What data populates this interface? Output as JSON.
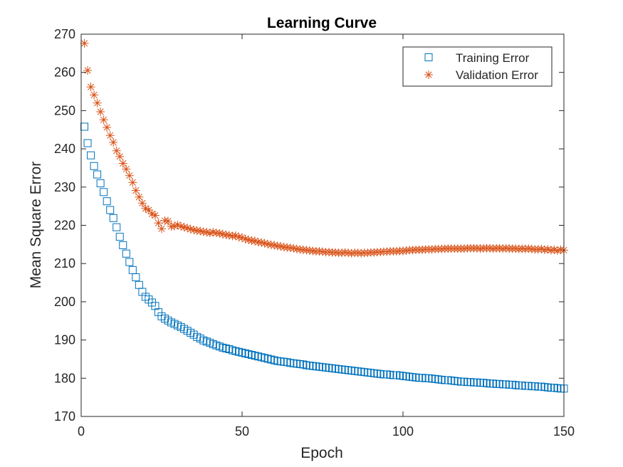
{
  "chart_data": {
    "type": "scatter",
    "title": "Learning Curve",
    "xlabel": "Epoch",
    "ylabel": "Mean Square Error",
    "xlim": [
      0,
      150
    ],
    "ylim": [
      170,
      270
    ],
    "xticks": [
      0,
      50,
      100,
      150
    ],
    "yticks": [
      170,
      180,
      190,
      200,
      210,
      220,
      230,
      240,
      250,
      260,
      270
    ],
    "grid": false,
    "legend_position": "top-right",
    "series": [
      {
        "name": "Training Error",
        "marker": "square",
        "color": "#0072BD",
        "x": [
          1,
          2,
          3,
          4,
          5,
          6,
          7,
          8,
          9,
          10,
          11,
          12,
          13,
          14,
          15,
          16,
          17,
          18,
          19,
          20,
          21,
          22,
          23,
          24,
          25,
          26,
          27,
          28,
          29,
          30,
          31,
          32,
          33,
          34,
          35,
          36,
          37,
          38,
          39,
          40,
          41,
          42,
          43,
          44,
          45,
          46,
          47,
          48,
          49,
          50,
          51,
          52,
          53,
          54,
          55,
          56,
          57,
          58,
          59,
          60,
          61,
          62,
          63,
          64,
          65,
          66,
          67,
          68,
          69,
          70,
          71,
          72,
          73,
          74,
          75,
          76,
          77,
          78,
          79,
          80,
          81,
          82,
          83,
          84,
          85,
          86,
          87,
          88,
          89,
          90,
          91,
          92,
          93,
          94,
          95,
          96,
          97,
          98,
          99,
          100,
          101,
          102,
          103,
          104,
          105,
          106,
          107,
          108,
          109,
          110,
          111,
          112,
          113,
          114,
          115,
          116,
          117,
          118,
          119,
          120,
          121,
          122,
          123,
          124,
          125,
          126,
          127,
          128,
          129,
          130,
          131,
          132,
          133,
          134,
          135,
          136,
          137,
          138,
          139,
          140,
          141,
          142,
          143,
          144,
          145,
          146,
          147,
          148,
          149,
          150
        ],
        "y": [
          245.8,
          241.5,
          238.3,
          235.5,
          233.3,
          231.0,
          228.7,
          226.3,
          224.0,
          221.9,
          219.5,
          217.0,
          214.8,
          212.6,
          210.4,
          208.3,
          206.4,
          204.4,
          202.6,
          201.3,
          200.6,
          199.8,
          198.9,
          197.3,
          196.2,
          195.6,
          195.1,
          194.6,
          194.2,
          193.8,
          193.4,
          192.9,
          192.4,
          191.9,
          191.4,
          190.8,
          190.4,
          189.9,
          189.6,
          189.3,
          188.9,
          188.6,
          188.3,
          188.0,
          187.8,
          187.6,
          187.3,
          187.1,
          186.9,
          186.7,
          186.5,
          186.3,
          186.1,
          185.9,
          185.7,
          185.5,
          185.3,
          185.1,
          184.9,
          184.7,
          184.5,
          184.4,
          184.3,
          184.2,
          184.0,
          183.9,
          183.8,
          183.7,
          183.6,
          183.4,
          183.3,
          183.2,
          183.1,
          183.0,
          182.9,
          182.8,
          182.7,
          182.6,
          182.5,
          182.4,
          182.3,
          182.2,
          182.1,
          182.0,
          181.9,
          181.8,
          181.7,
          181.6,
          181.5,
          181.4,
          181.3,
          181.2,
          181.1,
          181.0,
          181.0,
          180.9,
          180.8,
          180.8,
          180.7,
          180.6,
          180.5,
          180.4,
          180.3,
          180.2,
          180.1,
          180.1,
          180.0,
          180.0,
          179.9,
          179.8,
          179.7,
          179.6,
          179.5,
          179.5,
          179.4,
          179.3,
          179.2,
          179.1,
          179.1,
          179.0,
          179.0,
          178.9,
          178.9,
          178.8,
          178.8,
          178.7,
          178.6,
          178.6,
          178.5,
          178.5,
          178.4,
          178.4,
          178.3,
          178.3,
          178.2,
          178.1,
          178.1,
          178.0,
          178.0,
          177.9,
          177.9,
          177.8,
          177.8,
          177.7,
          177.6,
          177.5,
          177.5,
          177.4,
          177.3,
          177.3
        ]
      },
      {
        "name": "Validation Error",
        "marker": "asterisk",
        "color": "#D95319",
        "x": [
          1,
          2,
          3,
          4,
          5,
          6,
          7,
          8,
          9,
          10,
          11,
          12,
          13,
          14,
          15,
          16,
          17,
          18,
          19,
          20,
          21,
          22,
          23,
          24,
          25,
          26,
          27,
          28,
          29,
          30,
          31,
          32,
          33,
          34,
          35,
          36,
          37,
          38,
          39,
          40,
          41,
          42,
          43,
          44,
          45,
          46,
          47,
          48,
          49,
          50,
          51,
          52,
          53,
          54,
          55,
          56,
          57,
          58,
          59,
          60,
          61,
          62,
          63,
          64,
          65,
          66,
          67,
          68,
          69,
          70,
          71,
          72,
          73,
          74,
          75,
          76,
          77,
          78,
          79,
          80,
          81,
          82,
          83,
          84,
          85,
          86,
          87,
          88,
          89,
          90,
          91,
          92,
          93,
          94,
          95,
          96,
          97,
          98,
          99,
          100,
          101,
          102,
          103,
          104,
          105,
          106,
          107,
          108,
          109,
          110,
          111,
          112,
          113,
          114,
          115,
          116,
          117,
          118,
          119,
          120,
          121,
          122,
          123,
          124,
          125,
          126,
          127,
          128,
          129,
          130,
          131,
          132,
          133,
          134,
          135,
          136,
          137,
          138,
          139,
          140,
          141,
          142,
          143,
          144,
          145,
          146,
          147,
          148,
          149,
          150
        ],
        "y": [
          267.6,
          260.5,
          256.2,
          254.1,
          252.0,
          249.7,
          247.6,
          245.6,
          243.5,
          241.7,
          239.5,
          238.0,
          236.2,
          234.7,
          233.0,
          231.2,
          229.1,
          227.4,
          225.8,
          224.4,
          224.0,
          223.0,
          222.6,
          220.6,
          219.1,
          221.2,
          221.1,
          219.7,
          219.8,
          220.1,
          219.7,
          219.5,
          219.3,
          219.0,
          218.8,
          218.6,
          218.5,
          218.3,
          218.2,
          218.0,
          218.2,
          218.0,
          217.9,
          217.7,
          217.5,
          217.4,
          217.2,
          217.3,
          216.9,
          216.8,
          216.4,
          216.2,
          216.0,
          215.9,
          215.6,
          215.5,
          215.3,
          215.1,
          214.9,
          214.8,
          214.6,
          214.5,
          214.3,
          214.2,
          214.1,
          214.0,
          213.8,
          213.7,
          213.6,
          213.5,
          213.4,
          213.3,
          213.2,
          213.2,
          213.1,
          213.0,
          213.0,
          212.9,
          212.9,
          212.8,
          212.8,
          212.9,
          212.8,
          212.7,
          212.8,
          212.8,
          212.7,
          212.8,
          212.8,
          212.9,
          212.9,
          213.0,
          213.0,
          213.1,
          213.1,
          213.2,
          213.2,
          213.2,
          213.3,
          213.3,
          213.4,
          213.5,
          213.5,
          213.6,
          213.6,
          213.6,
          213.7,
          213.7,
          213.7,
          213.8,
          213.8,
          213.8,
          213.9,
          213.9,
          213.9,
          213.9,
          213.9,
          213.9,
          213.9,
          214.0,
          214.0,
          214.0,
          214.0,
          213.9,
          214.0,
          214.0,
          214.0,
          213.9,
          214.0,
          214.0,
          213.9,
          214.0,
          213.9,
          213.9,
          213.9,
          213.8,
          213.9,
          213.8,
          213.9,
          213.8,
          213.7,
          213.7,
          213.8,
          213.6,
          213.7,
          213.5,
          213.6,
          213.4,
          213.6,
          213.5
        ]
      }
    ]
  }
}
